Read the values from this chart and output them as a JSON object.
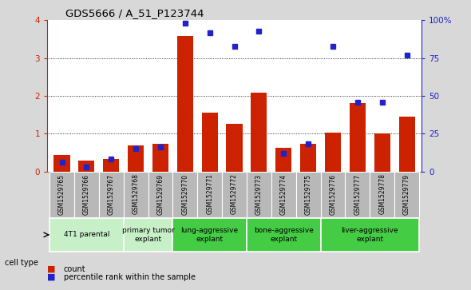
{
  "title": "GDS5666 / A_51_P123744",
  "samples": [
    "GSM1529765",
    "GSM1529766",
    "GSM1529767",
    "GSM1529768",
    "GSM1529769",
    "GSM1529770",
    "GSM1529771",
    "GSM1529772",
    "GSM1529773",
    "GSM1529774",
    "GSM1529775",
    "GSM1529776",
    "GSM1529777",
    "GSM1529778",
    "GSM1529779"
  ],
  "counts": [
    0.43,
    0.28,
    0.32,
    0.68,
    0.72,
    3.58,
    1.55,
    1.25,
    2.08,
    0.62,
    0.72,
    1.02,
    1.8,
    1.0,
    1.45
  ],
  "percentile": [
    6,
    3,
    8,
    15,
    16,
    98,
    92,
    83,
    93,
    12,
    18,
    83,
    46,
    46,
    77
  ],
  "groups": [
    {
      "label": "4T1 parental",
      "start": 0,
      "end": 3,
      "color": "#c8f0c8"
    },
    {
      "label": "primary tumor\nexplant",
      "start": 3,
      "end": 5,
      "color": "#c8f0c8"
    },
    {
      "label": "lung-aggressive\nexplant",
      "start": 5,
      "end": 8,
      "color": "#44cc44"
    },
    {
      "label": "bone-aggressive\nexplant",
      "start": 8,
      "end": 11,
      "color": "#44cc44"
    },
    {
      "label": "liver-aggressive\nexplant",
      "start": 11,
      "end": 15,
      "color": "#44cc44"
    }
  ],
  "bar_color": "#cc2200",
  "dot_color": "#2222cc",
  "ylim_left": [
    0,
    4
  ],
  "ylim_right": [
    0,
    100
  ],
  "yticks_left": [
    0,
    1,
    2,
    3,
    4
  ],
  "yticks_right": [
    0,
    25,
    50,
    75,
    100
  ],
  "yticklabels_right": [
    "0",
    "25",
    "50",
    "75",
    "100%"
  ],
  "bg_color": "#d8d8d8",
  "plot_bg": "#ffffff",
  "tick_bg": "#c8c8c8"
}
